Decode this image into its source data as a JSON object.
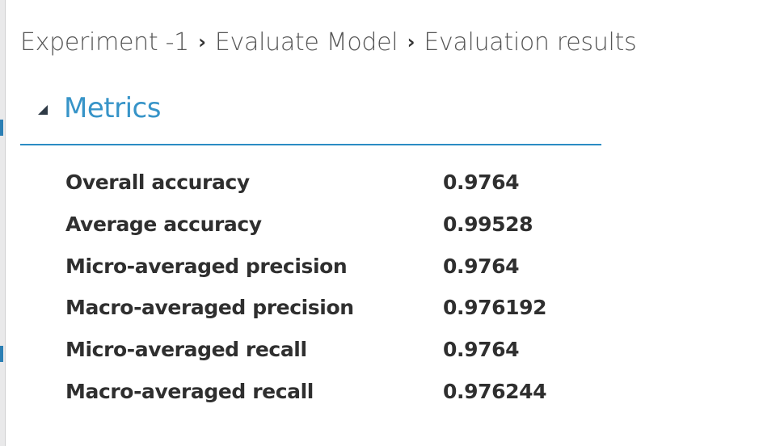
{
  "breadcrumb": {
    "items": [
      "Experiment -1",
      "Evaluate Model",
      "Evaluation results"
    ],
    "separator": "›"
  },
  "section": {
    "title": "Metrics",
    "accent_color": "#3794c8"
  },
  "metrics": [
    {
      "label": "Overall accuracy",
      "value": "0.9764"
    },
    {
      "label": "Average accuracy",
      "value": "0.99528"
    },
    {
      "label": "Micro-averaged precision",
      "value": "0.9764"
    },
    {
      "label": "Macro-averaged precision",
      "value": "0.976192"
    },
    {
      "label": "Micro-averaged recall",
      "value": "0.9764"
    },
    {
      "label": "Macro-averaged recall",
      "value": "0.976244"
    }
  ]
}
